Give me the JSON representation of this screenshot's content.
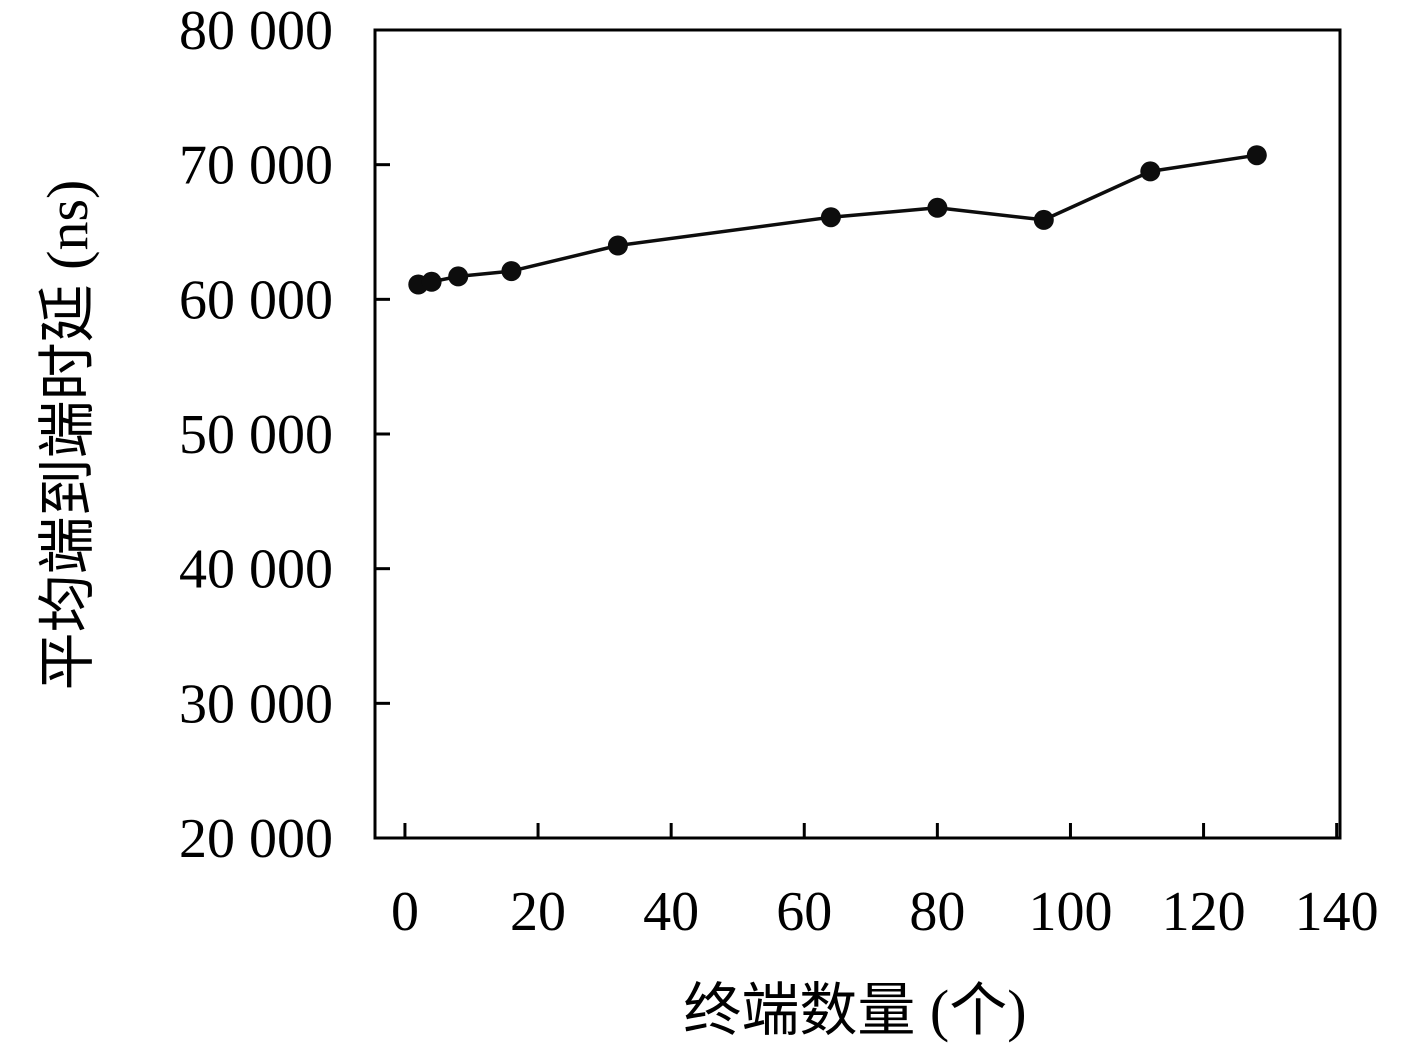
{
  "chart_data": {
    "type": "line",
    "title": "",
    "xlabel": "终端数量 (个)",
    "ylabel": "平均端到端时延 (ns)",
    "x": [
      2,
      4,
      8,
      16,
      32,
      64,
      80,
      96,
      112,
      128
    ],
    "values": [
      61100,
      61300,
      61700,
      62100,
      64000,
      66100,
      66800,
      65900,
      69500,
      70700
    ],
    "series_name": "平均端到端时延",
    "xlim": [
      -4.5,
      140.5
    ],
    "ylim": [
      20000,
      80000
    ],
    "xticks": [
      0,
      20,
      40,
      60,
      80,
      100,
      120,
      140
    ],
    "xtick_labels": [
      "0",
      "20",
      "40",
      "60",
      "80",
      "100",
      "120",
      "140"
    ],
    "yticks": [
      20000,
      30000,
      40000,
      50000,
      60000,
      70000,
      80000
    ],
    "ytick_labels": [
      "20 000",
      "30 000",
      "40 000",
      "50 000",
      "60 000",
      "70 000",
      "80 000"
    ],
    "grid": false,
    "legend": "none",
    "line_color": "#0d0d0d",
    "marker_color": "#0d0d0d",
    "frame_color": "#000000",
    "background_color": "#ffffff"
  }
}
